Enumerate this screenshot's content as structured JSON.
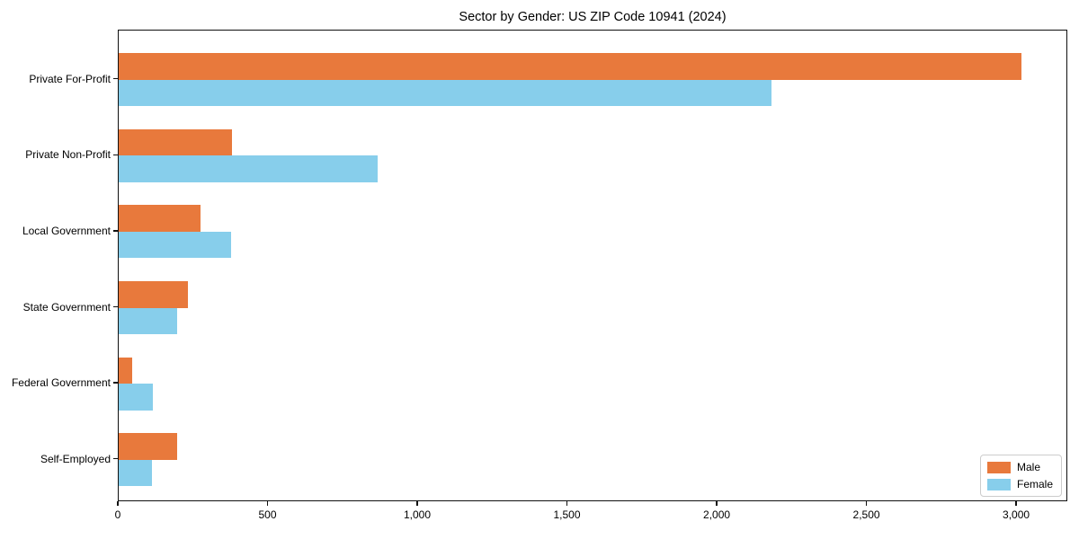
{
  "chart_data": {
    "type": "bar",
    "orientation": "horizontal",
    "title": "Sector by Gender: US ZIP Code 10941 (2024)",
    "categories": [
      "Private For-Profit",
      "Private Non-Profit",
      "Local Government",
      "State Government",
      "Federal Government",
      "Self-Employed"
    ],
    "series": [
      {
        "name": "Male",
        "color": "#e8793c",
        "values": [
          3020,
          378,
          275,
          232,
          45,
          196
        ]
      },
      {
        "name": "Female",
        "color": "#87ceeb",
        "values": [
          2185,
          866,
          376,
          195,
          114,
          110
        ]
      }
    ],
    "xlabel": "",
    "ylabel": "",
    "xlim": [
      0,
      3171
    ],
    "x_ticks": [
      0,
      500,
      1000,
      1500,
      2000,
      2500,
      3000
    ],
    "x_tick_labels": [
      "0",
      "500",
      "1,000",
      "1,500",
      "2,000",
      "2,500",
      "3,000"
    ],
    "grid": false,
    "legend": {
      "position": "lower right"
    }
  }
}
